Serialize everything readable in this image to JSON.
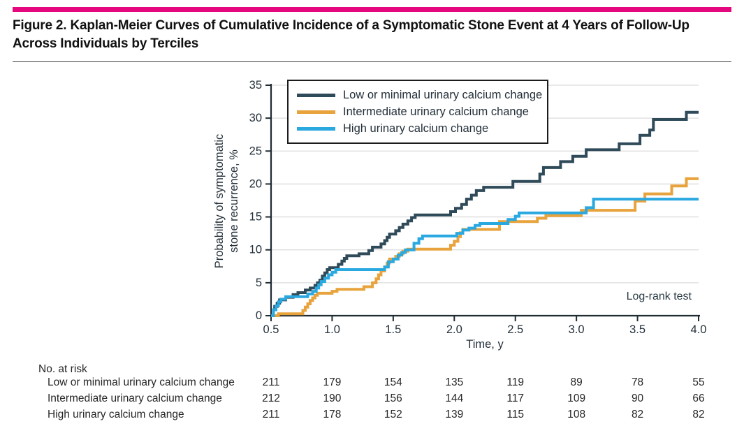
{
  "header": {
    "title_line1": "Figure 2. Kaplan-Meier Curves of Cumulative Incidence of a Symptomatic Stone Event at 4 Years of Follow-Up",
    "title_line2": "Across Individuals by Terciles"
  },
  "colors": {
    "accent_bar": "#E5077D",
    "axis": "#1F2B33",
    "gridline": "#DCDCDC",
    "tick_text": "#24303A",
    "series_low": "#2F4A59",
    "series_intermediate": "#E8A33C",
    "series_high": "#2AA9E1"
  },
  "chart_data": {
    "type": "line",
    "subtype": "kaplan-meier-step",
    "xlabel": "Time, y",
    "ylabel_line1": "Probability of symptomatic",
    "ylabel_line2": "stone recurrence, %",
    "xlim": [
      0.5,
      4.0
    ],
    "ylim": [
      0,
      35
    ],
    "x_ticks": [
      0.5,
      1.0,
      1.5,
      2.0,
      2.5,
      3.0,
      3.5,
      4.0
    ],
    "y_ticks": [
      0,
      5,
      10,
      15,
      20,
      25,
      30,
      35
    ],
    "grid": "horizontal",
    "legend_position": "top-left-inside",
    "annotation": "Log-rank test",
    "series": [
      {
        "name": "Low or minimal urinary calcium change",
        "color_key": "series_low",
        "points": [
          [
            0.5,
            0
          ],
          [
            0.52,
            0.9
          ],
          [
            0.53,
            1.4
          ],
          [
            0.55,
            1.9
          ],
          [
            0.57,
            2.4
          ],
          [
            0.62,
            2.8
          ],
          [
            0.68,
            3.2
          ],
          [
            0.72,
            3.5
          ],
          [
            0.78,
            3.9
          ],
          [
            0.82,
            4.2
          ],
          [
            0.86,
            4.6
          ],
          [
            0.88,
            5.0
          ],
          [
            0.9,
            5.4
          ],
          [
            0.92,
            6.0
          ],
          [
            0.94,
            6.5
          ],
          [
            0.96,
            7.0
          ],
          [
            0.98,
            7.3
          ],
          [
            1.05,
            7.8
          ],
          [
            1.08,
            8.3
          ],
          [
            1.1,
            8.7
          ],
          [
            1.12,
            9.1
          ],
          [
            1.22,
            9.4
          ],
          [
            1.3,
            9.9
          ],
          [
            1.33,
            10.4
          ],
          [
            1.4,
            10.9
          ],
          [
            1.43,
            11.4
          ],
          [
            1.45,
            11.9
          ],
          [
            1.47,
            12.4
          ],
          [
            1.52,
            12.9
          ],
          [
            1.55,
            13.4
          ],
          [
            1.58,
            13.9
          ],
          [
            1.62,
            14.4
          ],
          [
            1.65,
            14.9
          ],
          [
            1.68,
            15.3
          ],
          [
            1.97,
            15.8
          ],
          [
            2.01,
            16.3
          ],
          [
            2.06,
            16.9
          ],
          [
            2.1,
            17.7
          ],
          [
            2.14,
            18.3
          ],
          [
            2.18,
            19.0
          ],
          [
            2.24,
            19.5
          ],
          [
            2.48,
            20.4
          ],
          [
            2.7,
            21.5
          ],
          [
            2.73,
            22.5
          ],
          [
            2.87,
            23.4
          ],
          [
            2.97,
            24.2
          ],
          [
            3.08,
            25.2
          ],
          [
            3.35,
            26.1
          ],
          [
            3.52,
            27.4
          ],
          [
            3.6,
            28.2
          ],
          [
            3.63,
            29.8
          ],
          [
            3.9,
            30.9
          ],
          [
            4.0,
            30.9
          ]
        ]
      },
      {
        "name": "Intermediate urinary calcium change",
        "color_key": "series_intermediate",
        "points": [
          [
            0.5,
            0
          ],
          [
            0.56,
            0.3
          ],
          [
            0.76,
            0.8
          ],
          [
            0.78,
            1.3
          ],
          [
            0.8,
            1.8
          ],
          [
            0.82,
            2.3
          ],
          [
            0.84,
            2.7
          ],
          [
            0.86,
            3.1
          ],
          [
            0.88,
            3.4
          ],
          [
            1.0,
            3.7
          ],
          [
            1.04,
            4.0
          ],
          [
            1.26,
            4.4
          ],
          [
            1.33,
            5.0
          ],
          [
            1.36,
            5.6
          ],
          [
            1.38,
            6.2
          ],
          [
            1.4,
            6.8
          ],
          [
            1.43,
            7.4
          ],
          [
            1.45,
            8.0
          ],
          [
            1.47,
            8.6
          ],
          [
            1.52,
            9.0
          ],
          [
            1.55,
            9.4
          ],
          [
            1.58,
            9.8
          ],
          [
            1.62,
            10.1
          ],
          [
            1.97,
            10.7
          ],
          [
            2.0,
            11.3
          ],
          [
            2.03,
            12.0
          ],
          [
            2.05,
            12.6
          ],
          [
            2.07,
            13.1
          ],
          [
            2.37,
            14.3
          ],
          [
            2.68,
            14.8
          ],
          [
            2.75,
            15.2
          ],
          [
            3.04,
            16.0
          ],
          [
            3.48,
            17.4
          ],
          [
            3.56,
            18.5
          ],
          [
            3.78,
            19.7
          ],
          [
            3.9,
            20.8
          ],
          [
            4.0,
            20.8
          ]
        ]
      },
      {
        "name": "High urinary calcium change",
        "color_key": "series_high",
        "points": [
          [
            0.5,
            0
          ],
          [
            0.52,
            0.9
          ],
          [
            0.54,
            1.5
          ],
          [
            0.56,
            2.1
          ],
          [
            0.58,
            2.5
          ],
          [
            0.62,
            2.9
          ],
          [
            0.8,
            3.3
          ],
          [
            0.84,
            3.7
          ],
          [
            0.87,
            4.2
          ],
          [
            0.89,
            4.7
          ],
          [
            0.91,
            5.2
          ],
          [
            0.94,
            5.7
          ],
          [
            0.97,
            6.2
          ],
          [
            1.0,
            6.6
          ],
          [
            1.03,
            7.0
          ],
          [
            1.43,
            7.4
          ],
          [
            1.46,
            8.2
          ],
          [
            1.5,
            8.6
          ],
          [
            1.54,
            9.2
          ],
          [
            1.57,
            9.6
          ],
          [
            1.6,
            10.0
          ],
          [
            1.67,
            11.0
          ],
          [
            1.71,
            11.7
          ],
          [
            1.74,
            12.1
          ],
          [
            2.02,
            12.5
          ],
          [
            2.07,
            13.0
          ],
          [
            2.12,
            13.3
          ],
          [
            2.17,
            13.7
          ],
          [
            2.21,
            14.0
          ],
          [
            2.44,
            14.6
          ],
          [
            2.5,
            15.1
          ],
          [
            2.53,
            15.6
          ],
          [
            3.08,
            16.4
          ],
          [
            3.14,
            17.7
          ],
          [
            4.0,
            17.7
          ]
        ]
      }
    ]
  },
  "risk_table": {
    "heading": "No. at risk",
    "time_points": [
      0.5,
      1.0,
      1.5,
      2.0,
      2.5,
      3.0,
      3.5,
      4.0
    ],
    "rows": [
      {
        "label": "Low or minimal urinary calcium change",
        "values": [
          211,
          179,
          154,
          135,
          119,
          89,
          78,
          55
        ]
      },
      {
        "label": "Intermediate urinary calcium change",
        "values": [
          212,
          190,
          156,
          144,
          117,
          109,
          90,
          66
        ]
      },
      {
        "label": "High urinary calcium change",
        "values": [
          211,
          178,
          152,
          139,
          115,
          108,
          82,
          82
        ]
      }
    ]
  }
}
